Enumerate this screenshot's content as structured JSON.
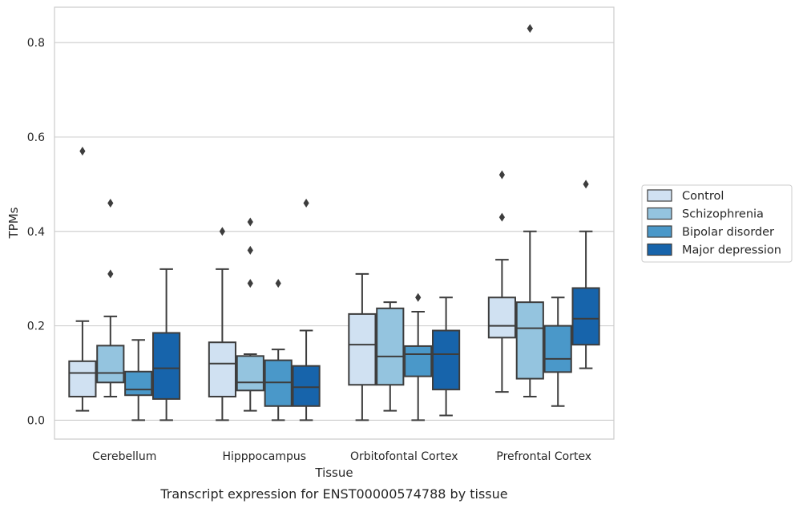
{
  "chart_data": {
    "type": "boxplot",
    "caption": "Transcript expression for ENST00000574788 by tissue",
    "xlabel": "Tissue",
    "ylabel": "TPMs",
    "ylim": [
      -0.04,
      0.875
    ],
    "yticks": [
      0.0,
      0.2,
      0.4,
      0.6,
      0.8
    ],
    "ytick_labels": [
      "0.0",
      "0.2",
      "0.4",
      "0.6",
      "0.8"
    ],
    "grid": true,
    "legend_position": "right",
    "categories": [
      "Cerebellum",
      "Hipppocampus",
      "Orbitofontal Cortex",
      "Prefrontal Cortex"
    ],
    "series": [
      {
        "name": "Control",
        "color": "#d0e1f2",
        "boxes": [
          {
            "whislo": 0.02,
            "q1": 0.05,
            "med": 0.1,
            "q3": 0.125,
            "whishi": 0.21,
            "fliers": [
              0.57
            ]
          },
          {
            "whislo": 0.0,
            "q1": 0.05,
            "med": 0.12,
            "q3": 0.165,
            "whishi": 0.32,
            "fliers": [
              0.4
            ]
          },
          {
            "whislo": 0.0,
            "q1": 0.075,
            "med": 0.16,
            "q3": 0.225,
            "whishi": 0.31,
            "fliers": []
          },
          {
            "whislo": 0.06,
            "q1": 0.175,
            "med": 0.2,
            "q3": 0.26,
            "whishi": 0.34,
            "fliers": [
              0.43,
              0.52
            ]
          }
        ]
      },
      {
        "name": "Schizophrenia",
        "color": "#94c4df",
        "boxes": [
          {
            "whislo": 0.05,
            "q1": 0.08,
            "med": 0.1,
            "q3": 0.158,
            "whishi": 0.22,
            "fliers": [
              0.31,
              0.46
            ]
          },
          {
            "whislo": 0.02,
            "q1": 0.063,
            "med": 0.08,
            "q3": 0.136,
            "whishi": 0.14,
            "fliers": [
              0.29,
              0.36,
              0.42
            ]
          },
          {
            "whislo": 0.02,
            "q1": 0.075,
            "med": 0.135,
            "q3": 0.237,
            "whishi": 0.25,
            "fliers": []
          },
          {
            "whislo": 0.05,
            "q1": 0.088,
            "med": 0.195,
            "q3": 0.25,
            "whishi": 0.4,
            "fliers": [
              0.83
            ]
          }
        ]
      },
      {
        "name": "Bipolar disorder",
        "color": "#4a98c9",
        "boxes": [
          {
            "whislo": 0.0,
            "q1": 0.053,
            "med": 0.065,
            "q3": 0.103,
            "whishi": 0.17,
            "fliers": []
          },
          {
            "whislo": 0.0,
            "q1": 0.03,
            "med": 0.08,
            "q3": 0.127,
            "whishi": 0.15,
            "fliers": [
              0.29
            ]
          },
          {
            "whislo": 0.0,
            "q1": 0.093,
            "med": 0.14,
            "q3": 0.157,
            "whishi": 0.23,
            "fliers": [
              0.26
            ]
          },
          {
            "whislo": 0.03,
            "q1": 0.102,
            "med": 0.13,
            "q3": 0.2,
            "whishi": 0.26,
            "fliers": []
          }
        ]
      },
      {
        "name": "Major depression",
        "color": "#1764ab",
        "boxes": [
          {
            "whislo": 0.0,
            "q1": 0.045,
            "med": 0.11,
            "q3": 0.185,
            "whishi": 0.32,
            "fliers": []
          },
          {
            "whislo": 0.0,
            "q1": 0.03,
            "med": 0.07,
            "q3": 0.115,
            "whishi": 0.19,
            "fliers": [
              0.46
            ]
          },
          {
            "whislo": 0.01,
            "q1": 0.065,
            "med": 0.14,
            "q3": 0.19,
            "whishi": 0.26,
            "fliers": []
          },
          {
            "whislo": 0.11,
            "q1": 0.16,
            "med": 0.215,
            "q3": 0.28,
            "whishi": 0.4,
            "fliers": [
              0.5
            ]
          }
        ]
      }
    ]
  }
}
